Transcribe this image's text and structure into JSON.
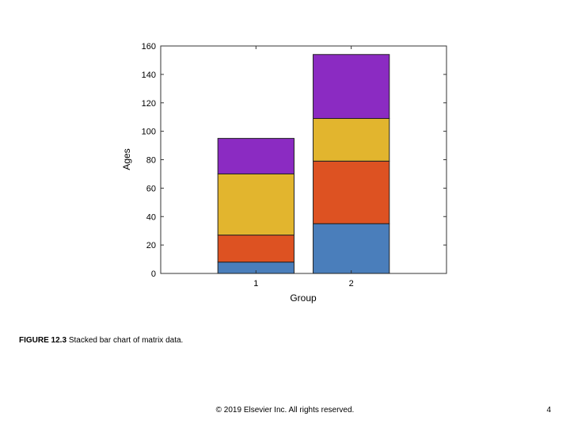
{
  "chart_data": {
    "type": "bar",
    "stacked": true,
    "categories": [
      "1",
      "2"
    ],
    "series": [
      {
        "color": "#4a7ebb",
        "values": [
          8,
          35
        ]
      },
      {
        "color": "#dd5222",
        "values": [
          19,
          44
        ]
      },
      {
        "color": "#e2b52e",
        "values": [
          43,
          30
        ]
      },
      {
        "color": "#8b2bc2",
        "values": [
          25,
          45
        ]
      }
    ],
    "title": "",
    "xlabel": "Group",
    "ylabel": "Ages",
    "ylim": [
      0,
      160
    ],
    "yticks": [
      "0",
      "20",
      "40",
      "60",
      "80",
      "100",
      "120",
      "140",
      "160"
    ],
    "grid": false
  },
  "caption": {
    "label": "FIGURE 12.3",
    "text": "Stacked bar chart of matrix data."
  },
  "footer": {
    "copyright": "© 2019 Elsevier Inc. All rights reserved.",
    "page_number": "4"
  }
}
